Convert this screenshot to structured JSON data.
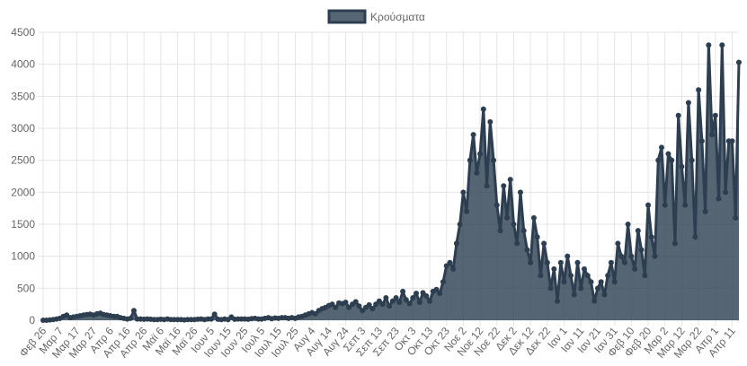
{
  "chart_data": {
    "type": "line",
    "legend": "top",
    "grid": true,
    "ylim": [
      0,
      4500
    ],
    "yticks": [
      0,
      500,
      1000,
      1500,
      2000,
      2500,
      3000,
      3500,
      4000,
      4500
    ],
    "categories": [
      "Φεβ 26",
      null,
      null,
      null,
      null,
      "Μαρ 7",
      null,
      null,
      null,
      null,
      "Μαρ 17",
      null,
      null,
      null,
      null,
      "Μαρ 27",
      null,
      null,
      null,
      null,
      "Απρ 6",
      null,
      null,
      null,
      null,
      "Απρ 16",
      null,
      null,
      null,
      null,
      "Απρ 26",
      null,
      null,
      null,
      null,
      "Μαϊ 6",
      null,
      null,
      null,
      null,
      "Μαϊ 16",
      null,
      null,
      null,
      null,
      "Μαϊ 26",
      null,
      null,
      null,
      null,
      "Ιουν 5",
      null,
      null,
      null,
      null,
      "Ιουν 15",
      null,
      null,
      null,
      null,
      "Ιουν 25",
      null,
      null,
      null,
      null,
      "Ιουλ 5",
      null,
      null,
      null,
      null,
      "Ιουλ 15",
      null,
      null,
      null,
      null,
      "Ιουλ 25",
      null,
      null,
      null,
      null,
      "Αυγ 4",
      null,
      null,
      null,
      null,
      "Αυγ 14",
      null,
      null,
      null,
      null,
      "Αυγ 24",
      null,
      null,
      null,
      null,
      "Σεπ 3",
      null,
      null,
      null,
      null,
      "Σεπ 13",
      null,
      null,
      null,
      null,
      "Σεπ 23",
      null,
      null,
      null,
      null,
      "Οκτ 3",
      null,
      null,
      null,
      null,
      "Οκτ 13",
      null,
      null,
      null,
      null,
      "Οκτ 23",
      null,
      null,
      null,
      null,
      "Νοε 2",
      null,
      null,
      null,
      null,
      "Νοε 12",
      null,
      null,
      null,
      null,
      "Νοε 22",
      null,
      null,
      null,
      null,
      "Δεκ 2",
      null,
      null,
      null,
      null,
      "Δεκ 12",
      null,
      null,
      null,
      null,
      "Δεκ 22",
      null,
      null,
      null,
      null,
      "Ιαν 1",
      null,
      null,
      null,
      null,
      "Ιαν 11",
      null,
      null,
      null,
      null,
      "Ιαν 21",
      null,
      null,
      null,
      null,
      "Ιαν 31",
      null,
      null,
      null,
      null,
      "Φεβ 10",
      null,
      null,
      null,
      null,
      "Φεβ 20",
      null,
      null,
      null,
      null,
      "Μαρ 2",
      null,
      null,
      null,
      null,
      "Μαρ 12",
      null,
      null,
      null,
      null,
      "Μαρ 22",
      null,
      null,
      null,
      null,
      "Απρ 1",
      null,
      null,
      null,
      null,
      "Απρ 11",
      null,
      null
    ],
    "series": [
      {
        "name": "Κρούσματα",
        "color": "#2c3e50",
        "fill_color": "rgba(44,62,80,0.8)",
        "values": [
          0,
          0,
          5,
          10,
          20,
          30,
          60,
          80,
          40,
          50,
          60,
          70,
          80,
          90,
          95,
          80,
          100,
          110,
          90,
          80,
          70,
          60,
          60,
          40,
          30,
          20,
          30,
          150,
          20,
          20,
          15,
          20,
          15,
          10,
          10,
          15,
          10,
          20,
          10,
          10,
          10,
          10,
          5,
          10,
          10,
          10,
          15,
          20,
          10,
          20,
          20,
          95,
          15,
          10,
          20,
          10,
          50,
          15,
          20,
          20,
          20,
          15,
          25,
          30,
          20,
          20,
          30,
          40,
          25,
          35,
          30,
          40,
          40,
          30,
          40,
          30,
          50,
          60,
          80,
          100,
          120,
          100,
          150,
          180,
          200,
          230,
          250,
          200,
          270,
          260,
          280,
          200,
          250,
          290,
          220,
          150,
          200,
          240,
          180,
          250,
          300,
          250,
          350,
          220,
          300,
          350,
          280,
          450,
          320,
          260,
          350,
          420,
          280,
          430,
          380,
          300,
          450,
          480,
          420,
          600,
          850,
          900,
          800,
          1200,
          1500,
          2000,
          1700,
          2500,
          2900,
          2300,
          2600,
          3300,
          2100,
          3100,
          2500,
          1800,
          1400,
          2100,
          1600,
          2200,
          1500,
          1200,
          2000,
          1400,
          1100,
          900,
          1600,
          1300,
          700,
          1200,
          900,
          500,
          800,
          300,
          900,
          600,
          1000,
          700,
          400,
          900,
          500,
          800,
          700,
          600,
          300,
          500,
          600,
          400,
          700,
          900,
          600,
          1200,
          1000,
          900,
          1500,
          1000,
          800,
          1400,
          1100,
          700,
          1800,
          1300,
          1000,
          2500,
          2700,
          1800,
          2600,
          2500,
          1200,
          3200,
          2400,
          1800,
          3400,
          2500,
          1300,
          3600,
          2800,
          1700,
          4300,
          2900,
          3200,
          1900,
          4300,
          2000,
          2800,
          2800,
          1600,
          4030
        ]
      }
    ]
  }
}
